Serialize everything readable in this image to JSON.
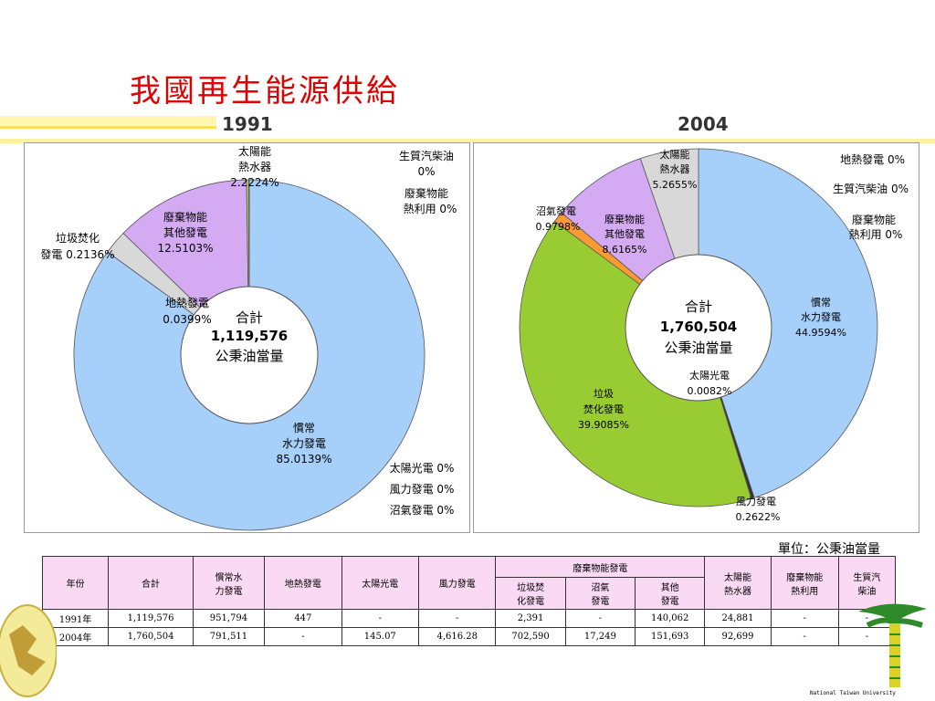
{
  "title": "我國再生能源供給",
  "unit_note": "單位：公秉油當量",
  "footer_text": "National Taiwan University",
  "chart_data": [
    {
      "type": "pie",
      "year": "1991",
      "center": {
        "label": "合計",
        "total": "1,119,576",
        "unit": "公秉油當量"
      },
      "slices": [
        {
          "label": "太陽能熱水器",
          "value": 2.2224,
          "color": "#d8d8d8"
        },
        {
          "label": "廢棄物能其他發電",
          "value": 12.5103,
          "color": "#d4aaf3"
        },
        {
          "label": "垃圾焚化發電",
          "value": 0.2136,
          "color": "#c8c860"
        },
        {
          "label": "地熱發電",
          "value": 0.0399,
          "color": "#ff9933"
        },
        {
          "label": "慣常水力發電",
          "value": 85.0139,
          "color": "#a6d0fa"
        }
      ],
      "zero_labels": [
        "太陽光電 0%",
        "風力發電 0%",
        "沼氣發電 0%"
      ],
      "colors": {
        "solar": "#d8d8d8",
        "waste": "#d4aaf3",
        "incin": "#c8c860",
        "geo": "#ff9933",
        "hydro": "#a6d0fa"
      }
    },
    {
      "type": "pie",
      "year": "2004",
      "center": {
        "label": "合計",
        "total": "1,760,504",
        "unit": "公秉油當量"
      },
      "slices": [
        {
          "label": "慣常水力發電",
          "value": 44.9594,
          "color": "#a6d0fa"
        },
        {
          "label": "太陽光電",
          "value": 0.0082,
          "color": "#4f4f2e"
        },
        {
          "label": "風力發電",
          "value": 0.2622,
          "color": "#333333"
        },
        {
          "label": "垃圾焚化發電",
          "value": 39.9085,
          "color": "#99cc33"
        },
        {
          "label": "沼氣發電",
          "value": 0.9798,
          "color": "#ff9933"
        },
        {
          "label": "廢棄物能其他發電",
          "value": 8.6165,
          "color": "#d4aaf3"
        },
        {
          "label": "太陽能熱水器",
          "value": 5.2655,
          "color": "#d8d8d8"
        }
      ],
      "zero_labels": [
        "地熱發電 0%",
        "生質汽柴油 0%",
        "廢棄物能熱利用 0%"
      ]
    }
  ],
  "labels1991": {
    "solar_heater": [
      "太陽能",
      "熱水器",
      "2.2224%"
    ],
    "biodiesel": [
      "生質汽柴油",
      "0%"
    ],
    "waste_heat": [
      "廢棄物能",
      "熱利用 0%"
    ],
    "waste_other": [
      "廢棄物能",
      "其他發電",
      "12.5103%"
    ],
    "incineration": [
      "垃圾焚化",
      "發電 0.2136%"
    ],
    "geothermal": [
      "地熱發電",
      "0.0399%"
    ],
    "hydro": [
      "慣常",
      "水力發電",
      "85.0139%"
    ],
    "zero": [
      "太陽光電 0%",
      "風力發電 0%",
      "沼氣發電 0%"
    ]
  },
  "labels2004": {
    "solar_heater": [
      "太陽能",
      "熱水器",
      "5.2655%"
    ],
    "geothermal": "地熱發電 0%",
    "biodiesel": "生質汽柴油 0%",
    "waste_heat": [
      "廢棄物能",
      "熱利用 0%"
    ],
    "biogas": [
      "沼氣發電",
      "0.9798%"
    ],
    "waste_other": [
      "廢棄物能",
      "其他發電",
      "8.6165%"
    ],
    "hydro": [
      "慣常",
      "水力發電",
      "44.9594%"
    ],
    "solar_pv": [
      "太陽光電",
      "0.0082%"
    ],
    "incineration": [
      "垃圾",
      "焚化發電",
      "39.9085%"
    ],
    "wind": [
      "風力發電",
      "0.2622%"
    ]
  },
  "table": {
    "h_year": "年份",
    "h_total": "合計",
    "h_hydro": [
      "慣常水",
      "力發電"
    ],
    "h_geo": "地熱發電",
    "h_pv": "太陽光電",
    "h_wind": "風力發電",
    "h_waste": "廢棄物能發電",
    "h_incin": [
      "垃圾焚",
      "化發電"
    ],
    "h_biogas": [
      "沼氣",
      "發電"
    ],
    "h_other": [
      "其他",
      "發電"
    ],
    "h_heater": [
      "太陽能",
      "熱水器"
    ],
    "h_heat": [
      "廢棄物能",
      "熱利用"
    ],
    "h_bio": [
      "生質汽",
      "柴油"
    ],
    "rows": [
      [
        "1991年",
        "1,119,576",
        "951,794",
        "447",
        "-",
        "-",
        "2,391",
        "-",
        "140,062",
        "24,881",
        "-",
        "-"
      ],
      [
        "2004年",
        "1,760,504",
        "791,511",
        "-",
        "145.07",
        "4,616.28",
        "702,590",
        "17,249",
        "151,693",
        "92,699",
        "-",
        "-"
      ]
    ]
  }
}
